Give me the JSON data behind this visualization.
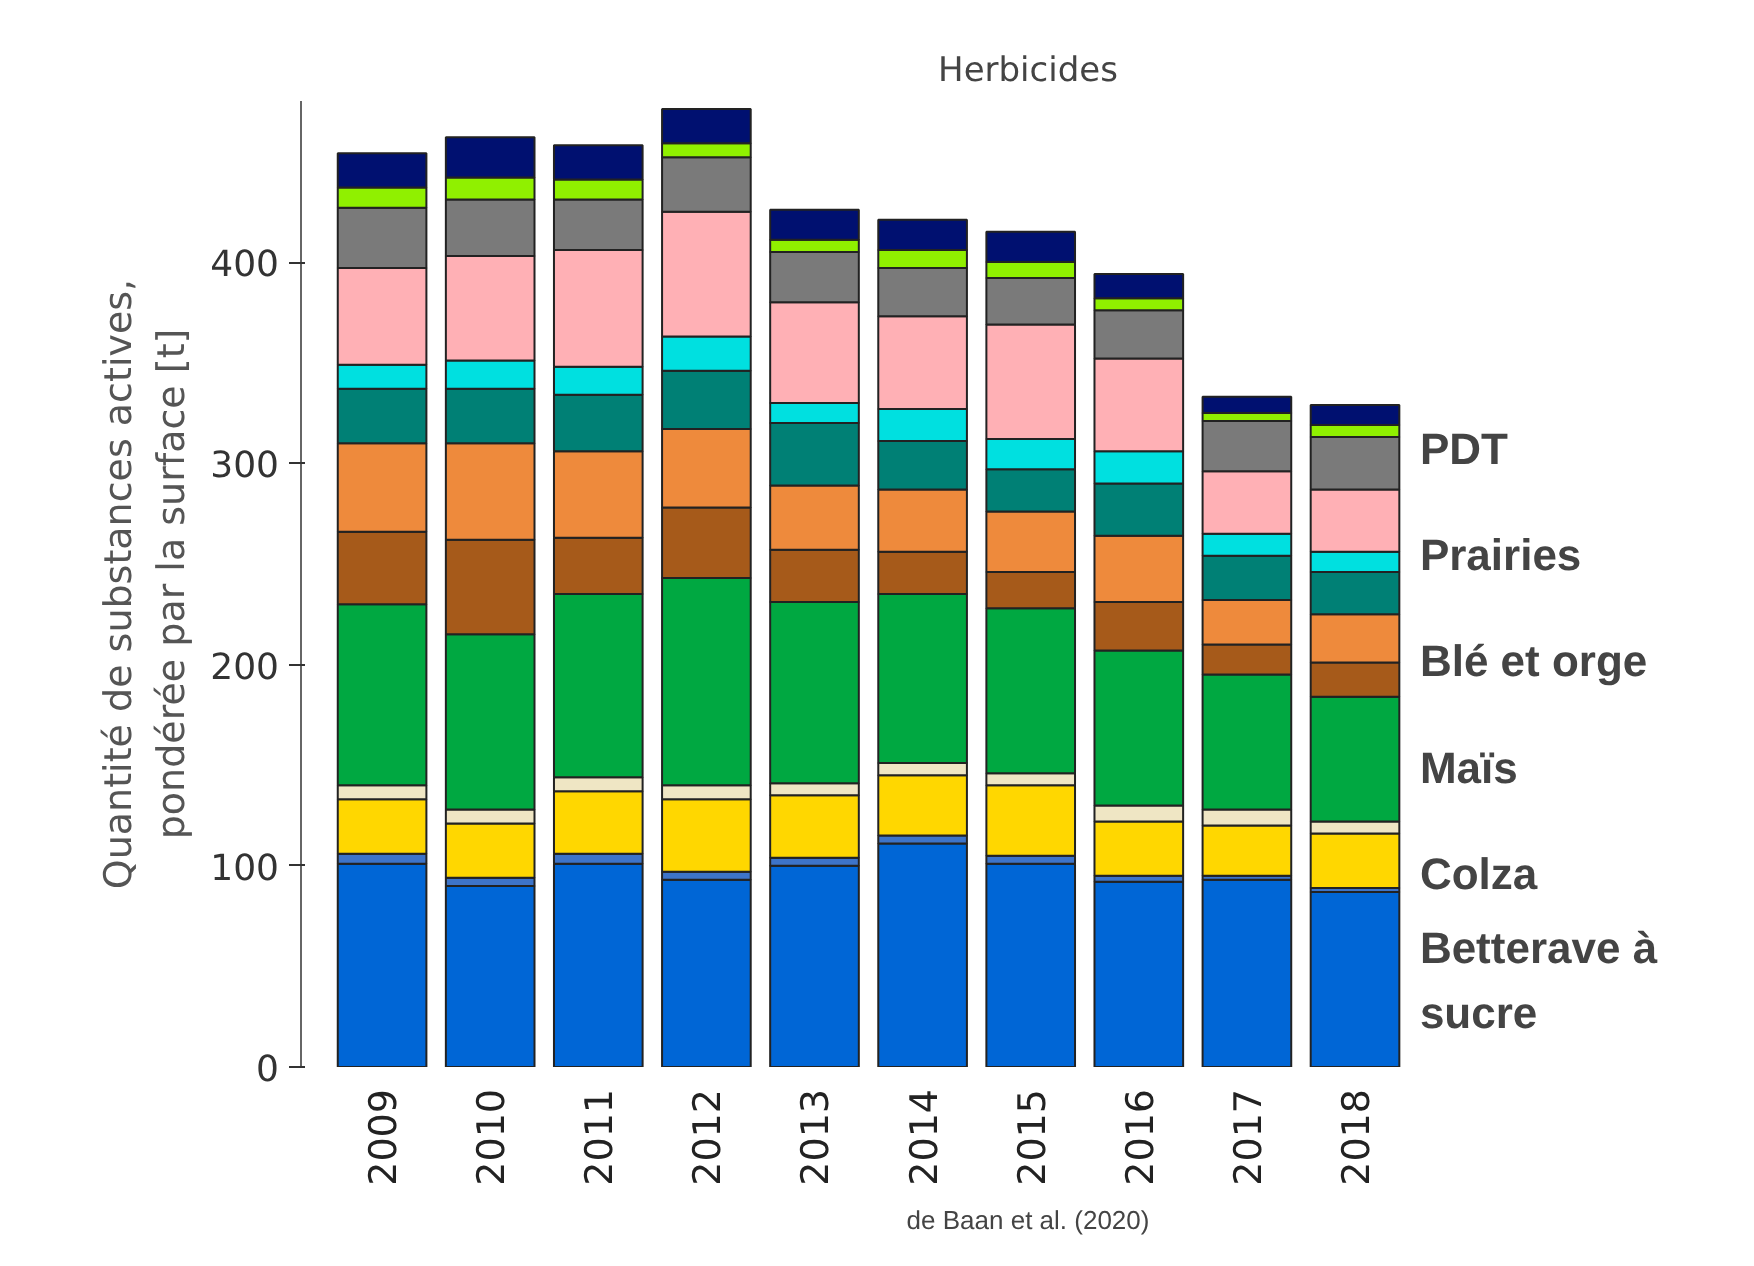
{
  "chart_data": {
    "type": "bar",
    "stacked": true,
    "title": "Herbicides",
    "ylabel": "Quantité de substances actives,\npondérée par la surface [t]",
    "categories": [
      "2009",
      "2010",
      "2011",
      "2012",
      "2013",
      "2014",
      "2015",
      "2016",
      "2017",
      "2018"
    ],
    "ylim": [
      0,
      480
    ],
    "yticks": [
      0,
      100,
      200,
      300,
      400
    ],
    "series": [
      {
        "color": "#0066d6",
        "values": [
          101,
          90,
          101,
          93,
          100,
          111,
          101,
          92,
          93,
          87
        ]
      },
      {
        "color": "#3d74c9",
        "values": [
          5,
          4,
          5,
          4,
          4,
          4,
          4,
          3,
          2,
          2
        ]
      },
      {
        "color": "#ffd700",
        "values": [
          27,
          27,
          31,
          36,
          31,
          30,
          35,
          27,
          25,
          27
        ]
      },
      {
        "color": "#efe6c4",
        "values": [
          7,
          7,
          7,
          7,
          6,
          6,
          6,
          8,
          8,
          6
        ]
      },
      {
        "color": "#00a841",
        "values": [
          90,
          87,
          91,
          103,
          90,
          84,
          82,
          77,
          67,
          62
        ]
      },
      {
        "color": "#a65a1a",
        "values": [
          36,
          47,
          28,
          35,
          26,
          21,
          18,
          24,
          15,
          17
        ]
      },
      {
        "color": "#ee8a3c",
        "values": [
          44,
          48,
          43,
          39,
          32,
          31,
          30,
          33,
          22,
          24
        ]
      },
      {
        "color": "#008075",
        "values": [
          27,
          27,
          28,
          29,
          31,
          24,
          21,
          26,
          22,
          21
        ]
      },
      {
        "color": "#00e0e0",
        "values": [
          12,
          14,
          14,
          17,
          10,
          16,
          15,
          16,
          11,
          10
        ]
      },
      {
        "color": "#ffb0b5",
        "values": [
          48,
          52,
          58,
          62,
          50,
          46,
          57,
          46,
          31,
          31
        ]
      },
      {
        "color": "#7a7a7a",
        "values": [
          30,
          28,
          25,
          27,
          25,
          24,
          23,
          24,
          25,
          26
        ]
      },
      {
        "color": "#90f000",
        "values": [
          10,
          11,
          10,
          7,
          6,
          9,
          8,
          6,
          4,
          6
        ]
      },
      {
        "color": "#001070",
        "values": [
          17,
          20,
          17,
          17,
          15,
          15,
          15,
          12,
          8,
          10
        ]
      }
    ],
    "annotations": [
      "PDT",
      "Prairies",
      "Blé et orge",
      "Maïs",
      "Colza",
      "Betterave à\nsucre",
      "de Baan et al. (2020)"
    ]
  }
}
